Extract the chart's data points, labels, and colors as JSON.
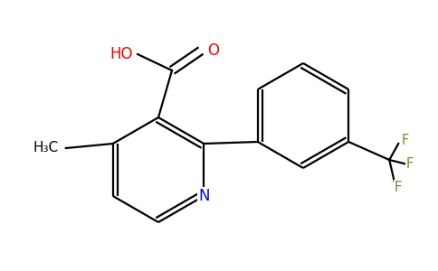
{
  "background_color": "#ffffff",
  "bond_color": "#000000",
  "atom_colors": {
    "N": "#0000ff",
    "O": "#ff0000",
    "F": "#6b8e23",
    "C": "#000000",
    "H": "#000000"
  },
  "figsize": [
    4.84,
    3.0
  ],
  "dpi": 100
}
